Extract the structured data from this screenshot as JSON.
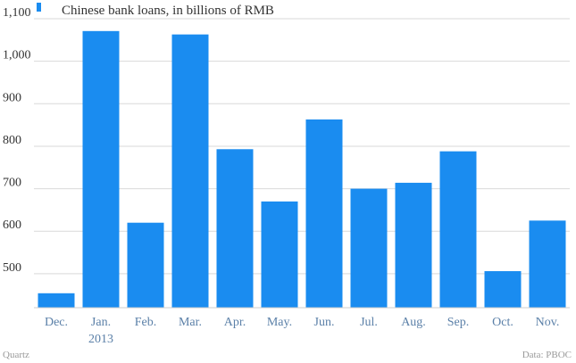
{
  "chart_data": {
    "type": "bar",
    "legend_label": "Chinese bank loans, in billions of RMB",
    "legend_placement": "top-left",
    "categories": [
      "Dec.",
      "Jan.",
      "Feb.",
      "Mar.",
      "Apr.",
      "May.",
      "Jun.",
      "Jul.",
      "Aug.",
      "Sep.",
      "Oct.",
      "Nov."
    ],
    "category_sublabels": [
      "",
      "2013",
      "",
      "",
      "",
      "",
      "",
      "",
      "",
      "",
      "",
      ""
    ],
    "values": [
      454,
      1071,
      620,
      1063,
      793,
      670,
      863,
      700,
      714,
      788,
      506,
      625
    ],
    "ylim": [
      420,
      1100
    ],
    "yticks": [
      "500",
      "600",
      "700",
      "800",
      "900",
      "1,000",
      "1,100"
    ],
    "grid": true,
    "bar_color": "#1a8cf0",
    "source_label": "Quartz",
    "data_credit": "Data: PBOC"
  }
}
